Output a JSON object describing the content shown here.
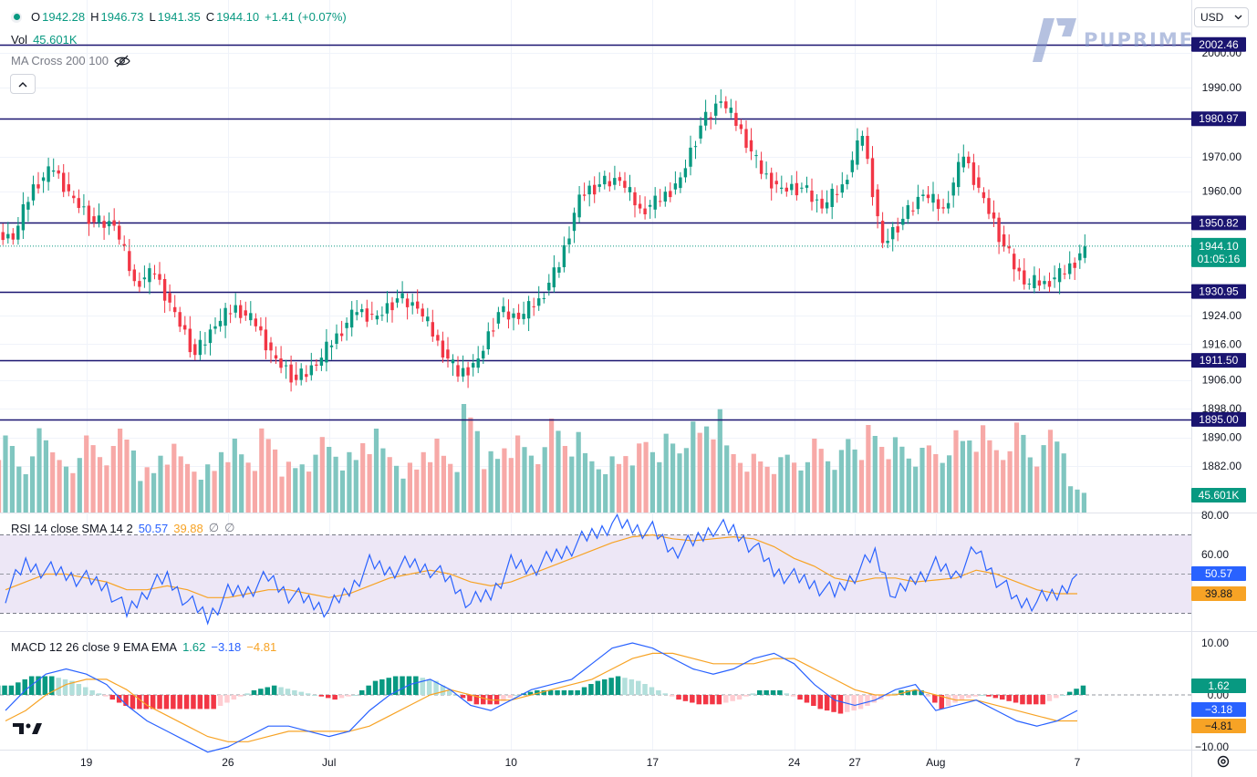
{
  "ohlc": {
    "open_label": "O",
    "open": "1942.28",
    "high_label": "H",
    "high": "1946.73",
    "low_label": "L",
    "low": "1941.35",
    "close_label": "C",
    "close": "1944.10",
    "change": "+1.41 (+0.07%)"
  },
  "volume": {
    "label": "Vol",
    "value": "45.601K"
  },
  "ma_cross": {
    "label": "MA Cross 200 100",
    "icon": "eye-crossed-icon"
  },
  "currency": {
    "label": "USD",
    "icon": "chevron-down-icon"
  },
  "brand": {
    "name": "PUPRIME"
  },
  "rsi_legend": {
    "label": "RSI 14 close SMA 14 2",
    "rsi": "50.57",
    "sma": "39.88",
    "extra1": "∅",
    "extra2": "∅"
  },
  "macd_legend": {
    "label": "MACD 12 26 close 9 EMA EMA",
    "hist": "1.62",
    "macd": "−3.18",
    "signal": "−4.81"
  },
  "colors": {
    "up": "#089981",
    "down": "#f23645",
    "vol_up": "#80c6c0",
    "vol_down": "#f7a9a7",
    "level": "#1a1470",
    "rsi_line": "#2962ff",
    "sma_line": "#f7a325",
    "rsi_band": "#ede7f6"
  },
  "chart_data": [
    {
      "type": "candlestick",
      "title": "",
      "price_axis_ticks": [
        "2000.00",
        "1990.00",
        "1970.00",
        "1960.00",
        "1924.00",
        "1916.00",
        "1906.00",
        "1898.00",
        "1890.00",
        "1882.00"
      ],
      "x_tick_labels": [
        "19",
        "26",
        "Jul",
        "10",
        "17",
        "24",
        "27",
        "Aug",
        "7"
      ],
      "horizontal_levels": [
        2002.46,
        1980.97,
        1950.82,
        1930.95,
        1911.5,
        1895.0
      ],
      "level_labels": [
        "2002.46",
        "1980.97",
        "1950.82",
        "1930.95",
        "1911.50",
        "1895.00"
      ],
      "last_price": {
        "value": "1944.10",
        "countdown": "01:05:16"
      },
      "last_volume": "45.601K",
      "close_path": [
        {
          "x": "Jun 15",
          "y": 1946
        },
        {
          "x": "Jun 16",
          "y": 1962
        },
        {
          "x": "Jun 17",
          "y": 1966
        },
        {
          "x": "Jun 18",
          "y": 1958
        },
        {
          "x": "Jun 19",
          "y": 1951
        },
        {
          "x": "Jun 20",
          "y": 1950
        },
        {
          "x": "Jun 21",
          "y": 1934
        },
        {
          "x": "Jun 22",
          "y": 1936
        },
        {
          "x": "Jun 23",
          "y": 1925
        },
        {
          "x": "Jun 24",
          "y": 1913
        },
        {
          "x": "Jun 25",
          "y": 1921
        },
        {
          "x": "Jun 26",
          "y": 1927
        },
        {
          "x": "Jun 27",
          "y": 1921
        },
        {
          "x": "Jun 28",
          "y": 1912
        },
        {
          "x": "Jun 29",
          "y": 1906
        },
        {
          "x": "Jun 30",
          "y": 1910
        },
        {
          "x": "Jul 1",
          "y": 1919
        },
        {
          "x": "Jul 2",
          "y": 1925
        },
        {
          "x": "Jul 3",
          "y": 1924
        },
        {
          "x": "Jul 4",
          "y": 1929
        },
        {
          "x": "Jul 5",
          "y": 1926
        },
        {
          "x": "Jul 6",
          "y": 1917
        },
        {
          "x": "Jul 7",
          "y": 1907
        },
        {
          "x": "Jul 8",
          "y": 1912
        },
        {
          "x": "Jul 9",
          "y": 1925
        },
        {
          "x": "Jul 10",
          "y": 1923
        },
        {
          "x": "Jul 11",
          "y": 1929
        },
        {
          "x": "Jul 12",
          "y": 1938
        },
        {
          "x": "Jul 13",
          "y": 1959
        },
        {
          "x": "Jul 14",
          "y": 1962
        },
        {
          "x": "Jul 15",
          "y": 1963
        },
        {
          "x": "Jul 16",
          "y": 1955
        },
        {
          "x": "Jul 17",
          "y": 1957
        },
        {
          "x": "Jul 18",
          "y": 1964
        },
        {
          "x": "Jul 19",
          "y": 1979
        },
        {
          "x": "Jul 20",
          "y": 1986
        },
        {
          "x": "Jul 21",
          "y": 1978
        },
        {
          "x": "Jul 22",
          "y": 1965
        },
        {
          "x": "Jul 23",
          "y": 1961
        },
        {
          "x": "Jul 24",
          "y": 1961
        },
        {
          "x": "Jul 25",
          "y": 1955
        },
        {
          "x": "Jul 26",
          "y": 1962
        },
        {
          "x": "Jul 27",
          "y": 1976
        },
        {
          "x": "Jul 28",
          "y": 1945
        },
        {
          "x": "Jul 29",
          "y": 1952
        },
        {
          "x": "Jul 30",
          "y": 1959
        },
        {
          "x": "Jul 31",
          "y": 1955
        },
        {
          "x": "Aug 1",
          "y": 1970
        },
        {
          "x": "Aug 2",
          "y": 1958
        },
        {
          "x": "Aug 3",
          "y": 1944
        },
        {
          "x": "Aug 4",
          "y": 1933
        },
        {
          "x": "Aug 5",
          "y": 1934
        },
        {
          "x": "Aug 6",
          "y": 1936
        },
        {
          "x": "Aug 7",
          "y": 1944
        }
      ]
    },
    {
      "type": "line",
      "title": "RSI 14 close SMA 14 2",
      "ylim": [
        20,
        80
      ],
      "y_tick_labels": [
        "80.00",
        "60.00"
      ],
      "band": [
        30,
        70
      ],
      "midline": 50,
      "series": [
        {
          "name": "RSI",
          "values": [
            40,
            55,
            52,
            50,
            47,
            44,
            30,
            42,
            48,
            36,
            28,
            40,
            42,
            48,
            40,
            36,
            32,
            42,
            55,
            52,
            55,
            53,
            46,
            35,
            40,
            55,
            53,
            58,
            64,
            70,
            76,
            74,
            72,
            62,
            66,
            74,
            72,
            64,
            52,
            48,
            45,
            40,
            50,
            60,
            38,
            48,
            54,
            50,
            62,
            48,
            36,
            36,
            40,
            50
          ]
        },
        {
          "name": "SMA",
          "values": [
            42,
            46,
            50,
            50,
            48,
            46,
            42,
            42,
            44,
            42,
            38,
            38,
            40,
            42,
            42,
            40,
            38,
            40,
            44,
            48,
            50,
            52,
            50,
            46,
            44,
            46,
            50,
            54,
            58,
            62,
            66,
            69,
            70,
            68,
            67,
            68,
            69,
            68,
            64,
            58,
            54,
            48,
            46,
            48,
            48,
            46,
            47,
            48,
            52,
            50,
            46,
            42,
            40,
            40
          ]
        }
      ]
    },
    {
      "type": "line",
      "title": "MACD 12 26 close 9 EMA EMA",
      "ylim": [
        -12,
        12
      ],
      "y_tick_labels": [
        "10.00",
        "0.00",
        "−10.00"
      ],
      "zero_line": 0,
      "series": [
        {
          "name": "MACD",
          "values": [
            -3,
            1,
            4,
            5,
            4,
            2,
            -2,
            -5,
            -7,
            -9,
            -11,
            -10,
            -8,
            -6,
            -6,
            -7,
            -8,
            -7,
            -3,
            0,
            2,
            3,
            1,
            -2,
            -3,
            -1,
            1,
            2,
            3,
            6,
            9,
            10,
            9,
            7,
            5,
            4,
            5,
            7,
            8,
            6,
            2,
            -1,
            -2,
            -1,
            1,
            2,
            -3,
            -2,
            -1,
            -3,
            -5,
            -6,
            -5,
            -3
          ]
        },
        {
          "name": "Signal",
          "values": [
            -5,
            -3,
            0,
            2,
            3,
            3,
            1,
            -2,
            -4,
            -6,
            -8,
            -9,
            -9,
            -8,
            -7,
            -7,
            -7,
            -7,
            -6,
            -4,
            -2,
            0,
            1,
            0,
            -1,
            -1,
            0,
            1,
            2,
            3,
            5,
            7,
            8,
            8,
            7,
            6,
            6,
            6,
            7,
            7,
            5,
            3,
            1,
            0,
            0,
            1,
            0,
            -1,
            -1,
            -2,
            -3,
            -4,
            -5,
            -5
          ]
        }
      ]
    }
  ]
}
